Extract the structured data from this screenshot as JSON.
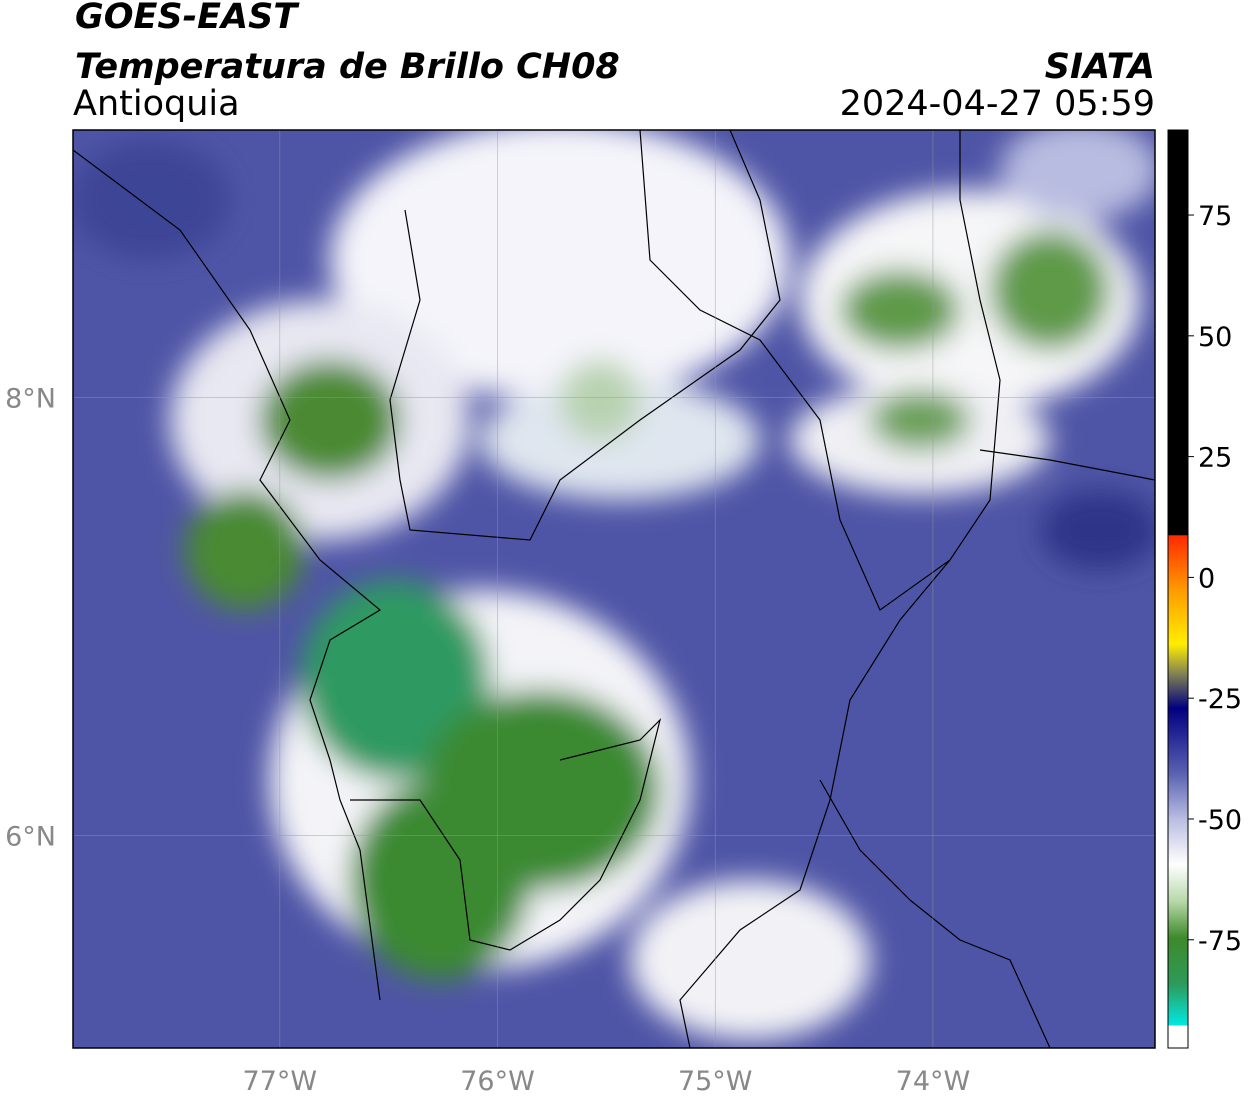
{
  "header": {
    "title": "GOES-EAST",
    "subtitle": "Temperatura de Brillo CH08",
    "region": "Antioquia",
    "source": "SIATA",
    "datetime": "2024-04-27 05:59"
  },
  "map": {
    "lon_lim": [
      -77.95,
      -72.98
    ],
    "lat_lim": [
      5.03,
      9.22
    ],
    "lon_ticks": [
      {
        "value": -77,
        "label": "77°W"
      },
      {
        "value": -76,
        "label": "76°W"
      },
      {
        "value": -75,
        "label": "75°W"
      },
      {
        "value": -74,
        "label": "74°W"
      }
    ],
    "lat_ticks": [
      {
        "value": 8,
        "label": "8°N"
      },
      {
        "value": 6,
        "label": "6°N"
      }
    ],
    "grid": true
  },
  "colorbar": {
    "lim": [
      -97.4,
      92.6
    ],
    "ticks": [
      75,
      50,
      25,
      0,
      -25,
      -50,
      -75
    ]
  }
}
